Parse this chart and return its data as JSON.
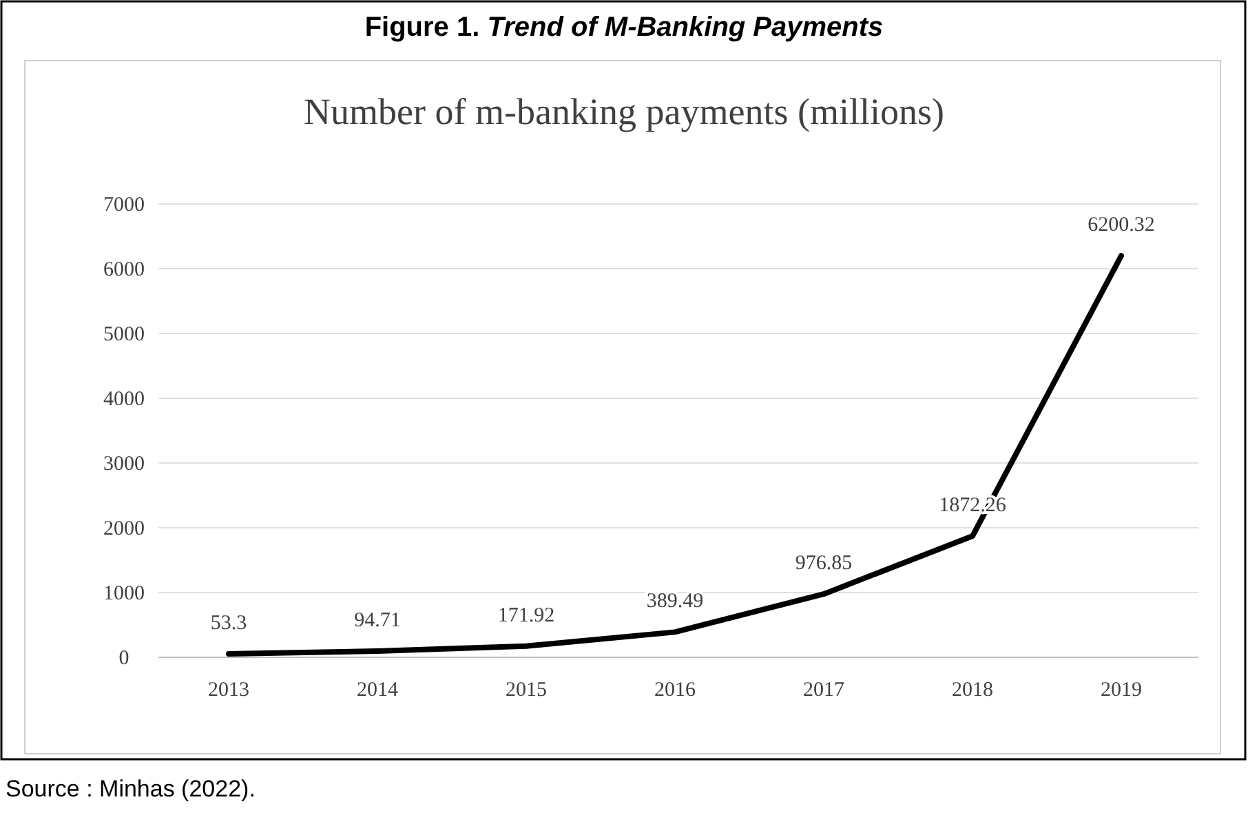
{
  "chart_data": {
    "type": "line",
    "title": "Figure 1. Trend of M-Banking Payments",
    "subtitle": "Number of m-banking payments (millions)",
    "categories": [
      "2013",
      "2014",
      "2015",
      "2016",
      "2017",
      "2018",
      "2019"
    ],
    "series": [
      {
        "color": "#000000",
        "values": [
          53.3,
          94.71,
          171.92,
          389.49,
          976.85,
          1872.26,
          6200.32
        ]
      }
    ],
    "ylim": [
      0,
      7000
    ],
    "yticks": [
      0,
      1000,
      2000,
      3000,
      4000,
      5000,
      6000,
      7000
    ],
    "grid": "y",
    "data_labels": true,
    "marker": "none",
    "line_style": "solid",
    "annotations": [
      "Source : Minhas (2022)."
    ]
  }
}
